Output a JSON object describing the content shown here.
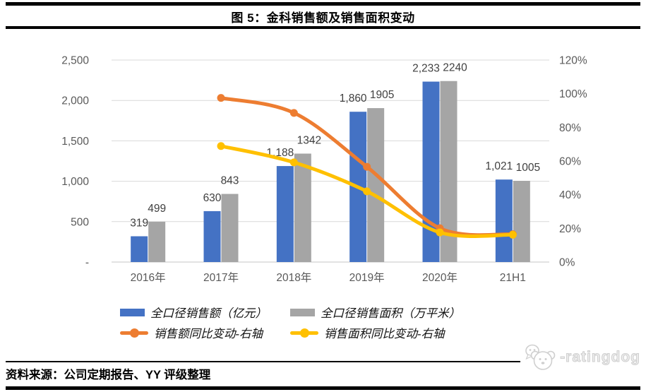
{
  "header": {
    "title": "图 5：金科销售额及销售面积变动"
  },
  "footer": {
    "source": "资料来源：公司定期报告、YY 评级整理",
    "logo_text": "-ratingdog"
  },
  "colors": {
    "bar_blue": "#4472C4",
    "bar_gray": "#A5A5A5",
    "line_orange": "#ED7D31",
    "line_yellow": "#FFC000",
    "gridline": "#D9D9D9",
    "axis_text": "#595959",
    "data_label": "#404040",
    "rule": "#000000",
    "logo_text": "#ECECEC"
  },
  "chart_data": {
    "type": "bar+line",
    "title": "图 5：金科销售额及销售面积变动",
    "xlabel": "",
    "ylabel_left": "",
    "ylabel_right": "",
    "grid": true,
    "legend_position": "bottom",
    "categories": [
      "2016年",
      "2017年",
      "2018年",
      "2019年",
      "2020年",
      "21H1"
    ],
    "left_axis": {
      "tick_labels": [
        "2,500",
        "2,000",
        "1,500",
        "1,000",
        "500",
        "-"
      ],
      "tick_values": [
        2500,
        2000,
        1500,
        1000,
        500,
        0
      ],
      "min": 0,
      "max": 2500
    },
    "right_axis": {
      "tick_labels": [
        "120%",
        "100%",
        "80%",
        "60%",
        "40%",
        "20%",
        "0%"
      ],
      "tick_values": [
        1.2,
        1.0,
        0.8,
        0.6,
        0.4,
        0.2,
        0
      ],
      "min": 0,
      "max": 1.2
    },
    "series": [
      {
        "name": "全口径销售额（亿元）",
        "type": "bar",
        "axis": "left",
        "color": "#4472C4",
        "values": [
          319,
          630,
          1188,
          1860,
          2233,
          1021
        ],
        "labels": [
          "319",
          "630",
          "1,188",
          "1,860",
          "2,233",
          "1,021"
        ]
      },
      {
        "name": "全口径销售面积（万平米）",
        "type": "bar",
        "axis": "left",
        "color": "#A5A5A5",
        "values": [
          499,
          843,
          1342,
          1905,
          2240,
          1005
        ],
        "labels": [
          "499",
          "843",
          "1342",
          "1905",
          "2240",
          "1005"
        ]
      },
      {
        "name": "销售额同比变动-右轴",
        "type": "line",
        "axis": "right",
        "color": "#ED7D31",
        "values": [
          null,
          0.975,
          0.886,
          0.566,
          0.201,
          0.165
        ]
      },
      {
        "name": "销售面积同比变动-右轴",
        "type": "line",
        "axis": "right",
        "color": "#FFC000",
        "values": [
          null,
          0.689,
          0.592,
          0.42,
          0.176,
          0.162
        ]
      }
    ]
  }
}
